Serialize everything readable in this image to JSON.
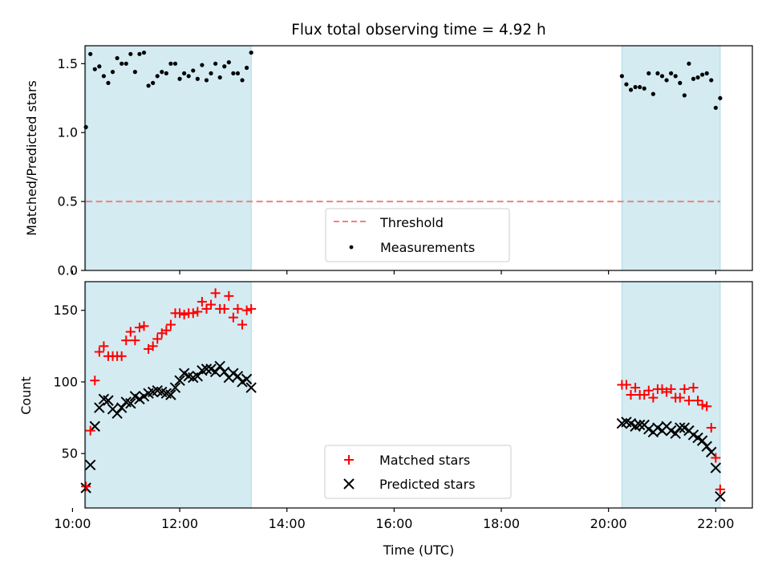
{
  "title": "Flux total observing time = 4.92 h",
  "colors": {
    "shade": "#add8e6",
    "threshold": "#f08080",
    "measurement": "#000000",
    "matched": "#ff0000",
    "predicted": "#000000"
  },
  "chart_data": [
    {
      "type": "scatter",
      "ylabel": "Matched/Predicted stars",
      "ylim": [
        0,
        1.63
      ],
      "yticks": [
        0.0,
        0.5,
        1.0,
        1.5
      ],
      "ytick_labels": [
        "0.0",
        "0.5",
        "1.0",
        "1.5"
      ],
      "xlim": [
        "10:14",
        "22:41"
      ],
      "grid": false,
      "legend_position": "lower-center",
      "shaded_intervals": [
        [
          "10:15",
          "13:20"
        ],
        [
          "20:15",
          "22:05"
        ]
      ],
      "threshold": {
        "name": "Threshold",
        "value": 0.5,
        "x_range": [
          "10:15",
          "22:05"
        ],
        "style": "dashed"
      },
      "series": [
        {
          "name": "Measurements",
          "marker": "dot",
          "points": [
            [
              "10:15",
              1.04
            ],
            [
              "10:20",
              1.57
            ],
            [
              "10:25",
              1.46
            ],
            [
              "10:30",
              1.48
            ],
            [
              "10:35",
              1.41
            ],
            [
              "10:40",
              1.36
            ],
            [
              "10:45",
              1.44
            ],
            [
              "10:50",
              1.54
            ],
            [
              "10:55",
              1.5
            ],
            [
              "11:00",
              1.5
            ],
            [
              "11:05",
              1.57
            ],
            [
              "11:10",
              1.44
            ],
            [
              "11:15",
              1.57
            ],
            [
              "11:20",
              1.58
            ],
            [
              "11:25",
              1.34
            ],
            [
              "11:30",
              1.36
            ],
            [
              "11:35",
              1.41
            ],
            [
              "11:40",
              1.44
            ],
            [
              "11:45",
              1.43
            ],
            [
              "11:50",
              1.5
            ],
            [
              "11:55",
              1.5
            ],
            [
              "12:00",
              1.39
            ],
            [
              "12:05",
              1.43
            ],
            [
              "12:10",
              1.41
            ],
            [
              "12:15",
              1.45
            ],
            [
              "12:20",
              1.39
            ],
            [
              "12:25",
              1.49
            ],
            [
              "12:30",
              1.38
            ],
            [
              "12:35",
              1.43
            ],
            [
              "12:40",
              1.5
            ],
            [
              "12:45",
              1.4
            ],
            [
              "12:50",
              1.48
            ],
            [
              "12:55",
              1.51
            ],
            [
              "13:00",
              1.43
            ],
            [
              "13:05",
              1.43
            ],
            [
              "13:10",
              1.38
            ],
            [
              "13:15",
              1.47
            ],
            [
              "13:20",
              1.58
            ],
            [
              "20:15",
              1.41
            ],
            [
              "20:20",
              1.35
            ],
            [
              "20:25",
              1.31
            ],
            [
              "20:30",
              1.33
            ],
            [
              "20:35",
              1.33
            ],
            [
              "20:40",
              1.32
            ],
            [
              "20:45",
              1.43
            ],
            [
              "20:50",
              1.28
            ],
            [
              "20:55",
              1.43
            ],
            [
              "21:00",
              1.41
            ],
            [
              "21:05",
              1.38
            ],
            [
              "21:10",
              1.43
            ],
            [
              "21:15",
              1.41
            ],
            [
              "21:20",
              1.36
            ],
            [
              "21:25",
              1.27
            ],
            [
              "21:30",
              1.5
            ],
            [
              "21:35",
              1.39
            ],
            [
              "21:40",
              1.4
            ],
            [
              "21:45",
              1.42
            ],
            [
              "21:50",
              1.43
            ],
            [
              "21:55",
              1.38
            ],
            [
              "22:00",
              1.18
            ],
            [
              "22:05",
              1.25
            ]
          ]
        }
      ]
    },
    {
      "type": "scatter",
      "xlabel": "Time (UTC)",
      "ylabel": "Count",
      "ylim": [
        12,
        170
      ],
      "yticks": [
        50,
        100,
        150
      ],
      "ytick_labels": [
        "50",
        "100",
        "150"
      ],
      "xlim": [
        "10:14",
        "22:41"
      ],
      "xticks": [
        "10:00",
        "12:00",
        "14:00",
        "16:00",
        "18:00",
        "20:00",
        "22:00"
      ],
      "xtick_labels": [
        "10:00",
        "12:00",
        "14:00",
        "16:00",
        "18:00",
        "20:00",
        "22:00"
      ],
      "grid": false,
      "legend_position": "lower-center",
      "shaded_intervals": [
        [
          "10:15",
          "13:20"
        ],
        [
          "20:15",
          "22:05"
        ]
      ],
      "series": [
        {
          "name": "Matched stars",
          "marker": "plus",
          "points": [
            [
              "10:15",
              27
            ],
            [
              "10:20",
              66
            ],
            [
              "10:25",
              101
            ],
            [
              "10:30",
              121
            ],
            [
              "10:35",
              125
            ],
            [
              "10:40",
              118
            ],
            [
              "10:45",
              118
            ],
            [
              "10:50",
              118
            ],
            [
              "10:55",
              118
            ],
            [
              "11:00",
              129
            ],
            [
              "11:05",
              135
            ],
            [
              "11:10",
              129
            ],
            [
              "11:15",
              138
            ],
            [
              "11:20",
              139
            ],
            [
              "11:25",
              123
            ],
            [
              "11:30",
              125
            ],
            [
              "11:35",
              130
            ],
            [
              "11:40",
              134
            ],
            [
              "11:45",
              136
            ],
            [
              "11:50",
              140
            ],
            [
              "11:55",
              148
            ],
            [
              "12:00",
              148
            ],
            [
              "12:05",
              147
            ],
            [
              "12:10",
              148
            ],
            [
              "12:15",
              148
            ],
            [
              "12:20",
              149
            ],
            [
              "12:25",
              156
            ],
            [
              "12:30",
              151
            ],
            [
              "12:35",
              154
            ],
            [
              "12:40",
              162
            ],
            [
              "12:45",
              151
            ],
            [
              "12:50",
              151
            ],
            [
              "12:55",
              160
            ],
            [
              "13:00",
              145
            ],
            [
              "13:05",
              151
            ],
            [
              "13:10",
              140
            ],
            [
              "13:15",
              150
            ],
            [
              "13:20",
              151
            ],
            [
              "20:15",
              98
            ],
            [
              "20:20",
              98
            ],
            [
              "20:25",
              91
            ],
            [
              "20:30",
              96
            ],
            [
              "20:35",
              91
            ],
            [
              "20:40",
              91
            ],
            [
              "20:45",
              94
            ],
            [
              "20:50",
              89
            ],
            [
              "20:55",
              95
            ],
            [
              "21:00",
              95
            ],
            [
              "21:05",
              93
            ],
            [
              "21:10",
              95
            ],
            [
              "21:15",
              89
            ],
            [
              "21:20",
              89
            ],
            [
              "21:25",
              95
            ],
            [
              "21:30",
              87
            ],
            [
              "21:35",
              96
            ],
            [
              "21:40",
              87
            ],
            [
              "21:45",
              84
            ],
            [
              "21:50",
              83
            ],
            [
              "21:55",
              68
            ],
            [
              "22:00",
              47
            ],
            [
              "22:05",
              25
            ]
          ]
        },
        {
          "name": "Predicted stars",
          "marker": "x",
          "points": [
            [
              "10:15",
              26
            ],
            [
              "10:20",
              42
            ],
            [
              "10:25",
              69
            ],
            [
              "10:30",
              82
            ],
            [
              "10:35",
              88
            ],
            [
              "10:40",
              87
            ],
            [
              "10:45",
              81
            ],
            [
              "10:50",
              78
            ],
            [
              "10:55",
              82
            ],
            [
              "11:00",
              86
            ],
            [
              "11:05",
              85
            ],
            [
              "11:10",
              90
            ],
            [
              "11:15",
              88
            ],
            [
              "11:20",
              90
            ],
            [
              "11:25",
              92
            ],
            [
              "11:30",
              93
            ],
            [
              "11:35",
              94
            ],
            [
              "11:40",
              93
            ],
            [
              "11:45",
              92
            ],
            [
              "11:50",
              91
            ],
            [
              "11:55",
              96
            ],
            [
              "12:00",
              101
            ],
            [
              "12:05",
              106
            ],
            [
              "12:10",
              104
            ],
            [
              "12:15",
              103
            ],
            [
              "12:20",
              104
            ],
            [
              "12:25",
              108
            ],
            [
              "12:30",
              109
            ],
            [
              "12:35",
              109
            ],
            [
              "12:40",
              107
            ],
            [
              "12:45",
              111
            ],
            [
              "12:50",
              107
            ],
            [
              "12:55",
              103
            ],
            [
              "13:00",
              106
            ],
            [
              "13:05",
              104
            ],
            [
              "13:10",
              100
            ],
            [
              "13:15",
              102
            ],
            [
              "13:20",
              96
            ],
            [
              "20:15",
              71
            ],
            [
              "20:20",
              72
            ],
            [
              "20:25",
              71
            ],
            [
              "20:30",
              69
            ],
            [
              "20:35",
              70
            ],
            [
              "20:40",
              70
            ],
            [
              "20:45",
              67
            ],
            [
              "20:50",
              65
            ],
            [
              "20:55",
              68
            ],
            [
              "21:00",
              66
            ],
            [
              "21:05",
              69
            ],
            [
              "21:10",
              66
            ],
            [
              "21:15",
              64
            ],
            [
              "21:20",
              68
            ],
            [
              "21:25",
              68
            ],
            [
              "21:30",
              66
            ],
            [
              "21:35",
              63
            ],
            [
              "21:40",
              61
            ],
            [
              "21:45",
              59
            ],
            [
              "21:50",
              55
            ],
            [
              "21:55",
              51
            ],
            [
              "22:00",
              40
            ],
            [
              "22:05",
              20
            ]
          ]
        }
      ]
    }
  ]
}
